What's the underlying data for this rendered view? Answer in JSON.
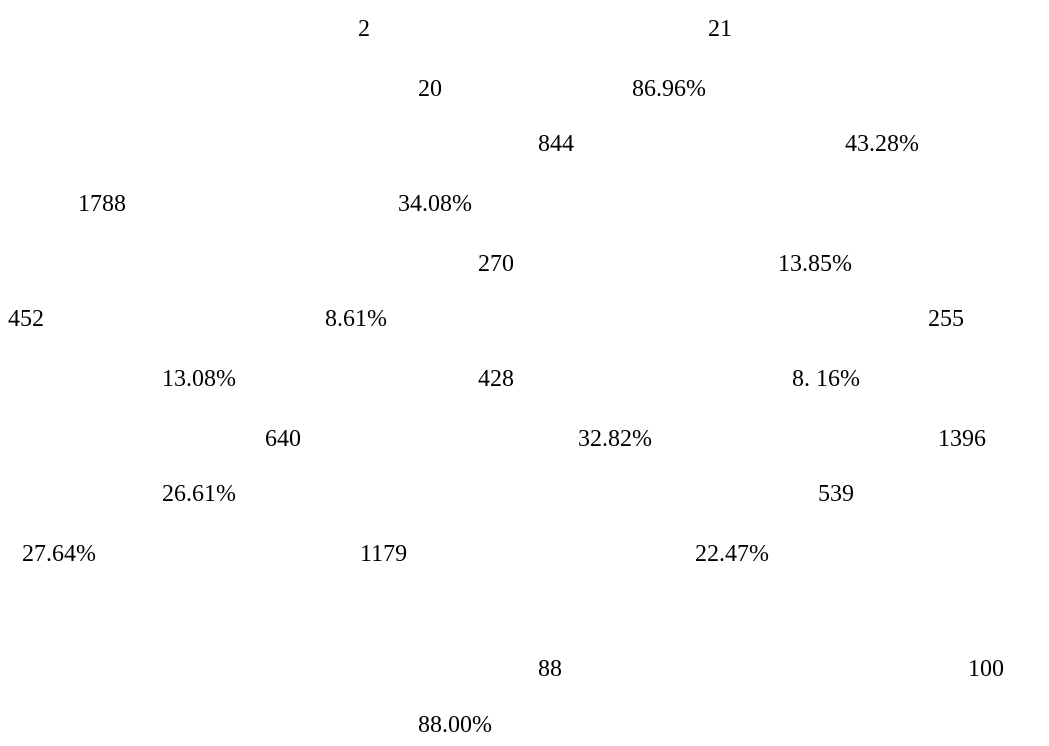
{
  "values": [
    "2",
    "21",
    "20",
    "86.96%",
    "844",
    "43.28%",
    "1788",
    "34.08%",
    "270",
    "13.85%",
    "452",
    "8.61%",
    "255",
    "13.08%",
    "428",
    "8. 16%",
    "640",
    "32.82%",
    "1396",
    "26.61%",
    "539",
    "27.64%",
    "1179",
    "22.47%",
    "88",
    "100",
    "88.00%"
  ]
}
